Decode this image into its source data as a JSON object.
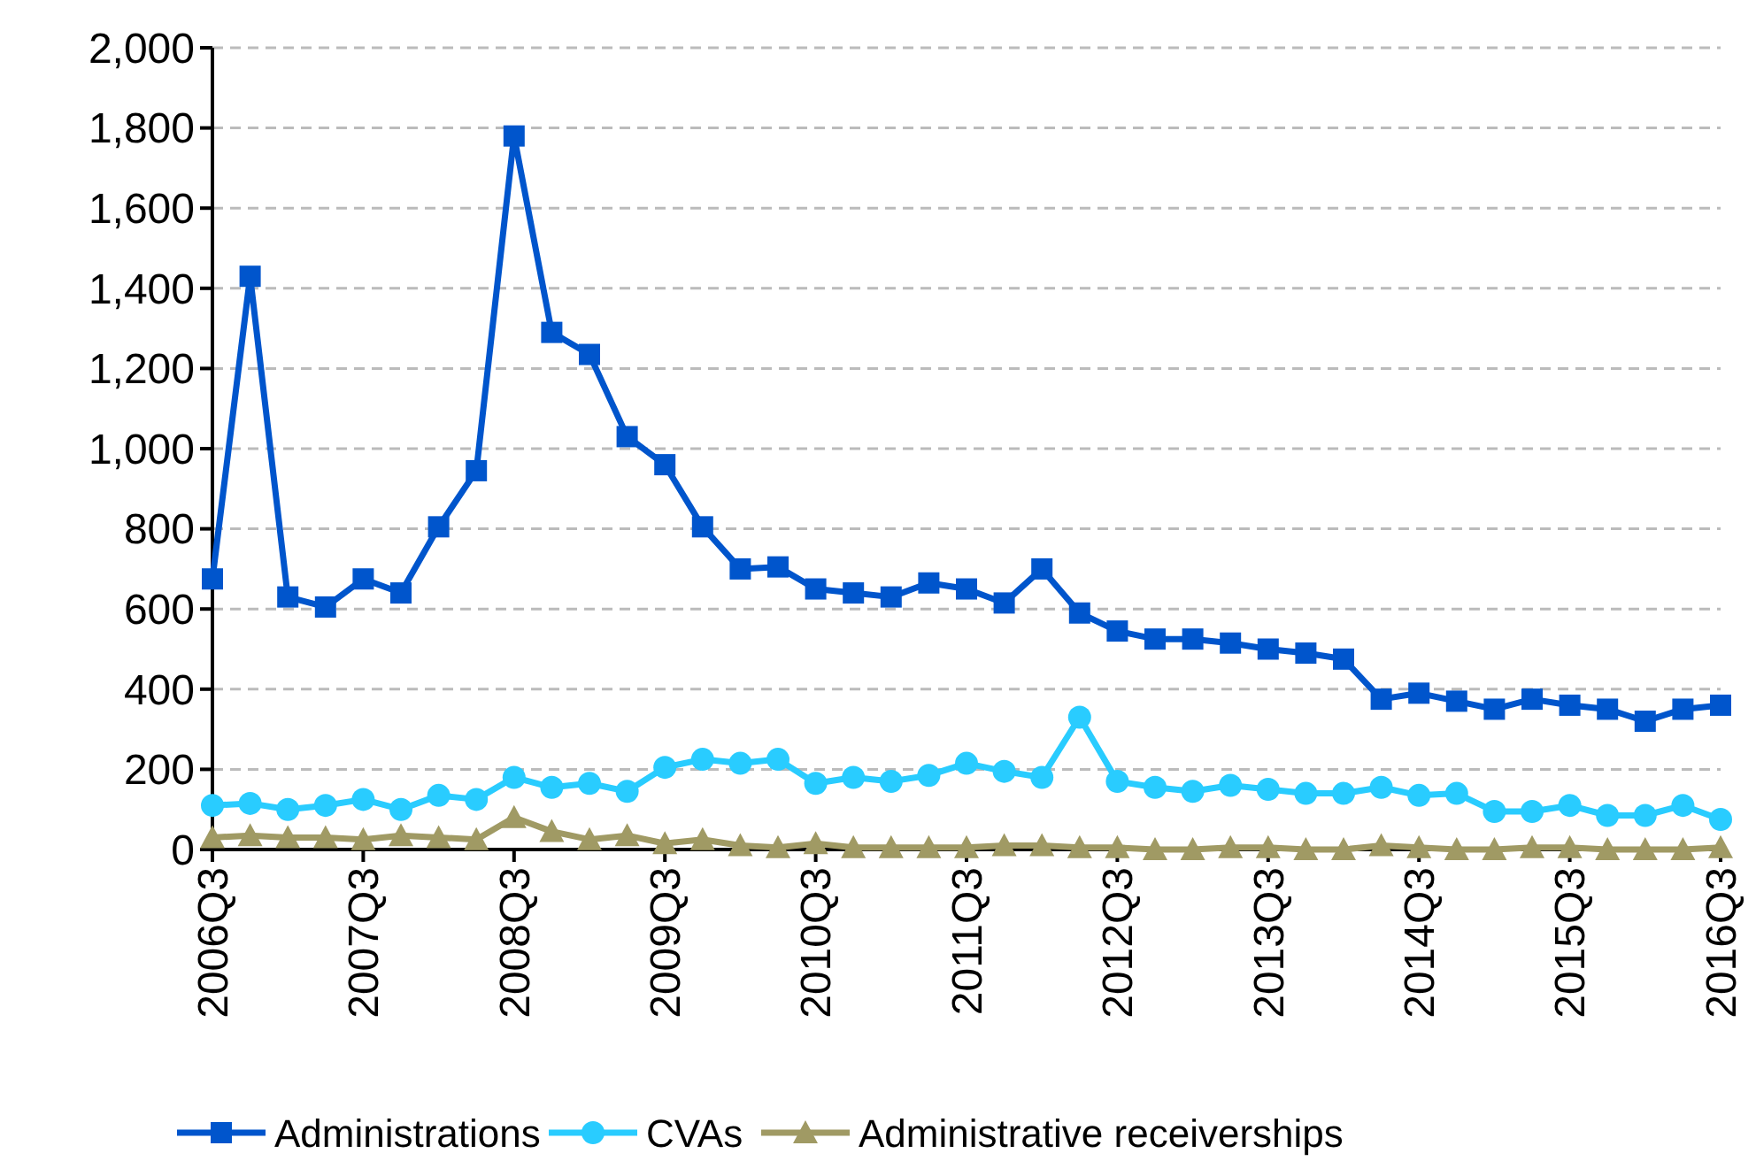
{
  "chart_data": {
    "type": "line",
    "categories": [
      "2006Q3",
      null,
      null,
      null,
      "2007Q3",
      null,
      null,
      null,
      "2008Q3",
      null,
      null,
      null,
      "2009Q3",
      null,
      null,
      null,
      "2010Q3",
      null,
      null,
      null,
      "2011Q3",
      null,
      null,
      null,
      "2012Q3",
      null,
      null,
      null,
      "2013Q3",
      null,
      null,
      null,
      "2014Q3",
      null,
      null,
      null,
      "2015Q3",
      null,
      null,
      null,
      "2016Q3"
    ],
    "series": [
      {
        "name": "Administrations",
        "color": "#0055cc",
        "marker": "square",
        "values": [
          675,
          1430,
          630,
          605,
          675,
          640,
          805,
          945,
          1780,
          1290,
          1235,
          1030,
          960,
          805,
          700,
          705,
          650,
          640,
          630,
          665,
          650,
          615,
          700,
          590,
          545,
          525,
          525,
          515,
          500,
          490,
          475,
          375,
          390,
          370,
          350,
          375,
          360,
          350,
          320,
          350,
          360
        ]
      },
      {
        "name": "CVAs",
        "color": "#29ccff",
        "marker": "circle",
        "values": [
          110,
          115,
          100,
          110,
          125,
          100,
          135,
          125,
          180,
          155,
          165,
          145,
          205,
          225,
          215,
          225,
          165,
          180,
          170,
          185,
          215,
          195,
          180,
          330,
          170,
          155,
          145,
          160,
          150,
          140,
          140,
          155,
          135,
          140,
          95,
          95,
          110,
          85,
          85,
          110,
          75
        ]
      },
      {
        "name": "Administrative receiverships",
        "color": "#a09a64",
        "marker": "triangle",
        "values": [
          30,
          35,
          30,
          30,
          25,
          35,
          30,
          25,
          80,
          45,
          25,
          35,
          15,
          25,
          10,
          5,
          15,
          5,
          5,
          5,
          5,
          10,
          10,
          5,
          5,
          0,
          0,
          5,
          5,
          0,
          0,
          10,
          5,
          0,
          0,
          5,
          5,
          0,
          0,
          0,
          5
        ]
      }
    ],
    "ylim": [
      0,
      2000
    ],
    "yticks": [
      {
        "value": 0,
        "label": "0"
      },
      {
        "value": 200,
        "label": "200"
      },
      {
        "value": 400,
        "label": "400"
      },
      {
        "value": 600,
        "label": "600"
      },
      {
        "value": 800,
        "label": "800"
      },
      {
        "value": 1000,
        "label": "1,000"
      },
      {
        "value": 1200,
        "label": "1,200"
      },
      {
        "value": 1400,
        "label": "1,400"
      },
      {
        "value": 1600,
        "label": "1,600"
      },
      {
        "value": 1800,
        "label": "1,800"
      },
      {
        "value": 2000,
        "label": "2,000"
      }
    ],
    "grid": "y",
    "legend": "bottom",
    "line_style": "solid"
  }
}
